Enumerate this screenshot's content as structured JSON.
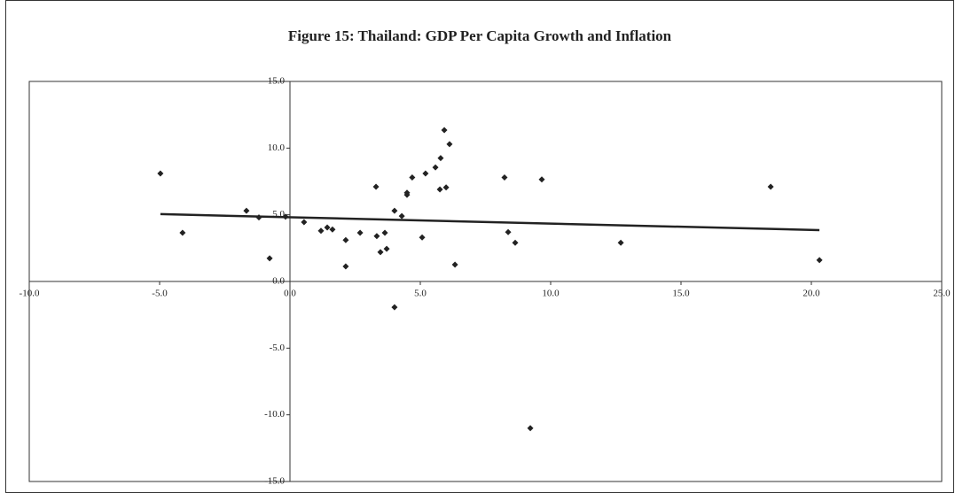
{
  "chart_data": {
    "type": "scatter",
    "title": "Figure 15: Thailand: GDP Per Capita Growth and Inflation",
    "series": [
      {
        "color": "#222222",
        "x": [
          -4.97,
          -4.12,
          -1.67,
          -1.19,
          -0.78,
          -0.17,
          0.54,
          1.19,
          1.43,
          1.63,
          2.14,
          2.14,
          2.69,
          3.3,
          3.33,
          3.47,
          3.64,
          3.71,
          4.01,
          4.01,
          4.29,
          4.49,
          4.49,
          4.69,
          5.07,
          5.2,
          5.58,
          5.75,
          5.78,
          5.92,
          5.99,
          6.12,
          6.33,
          8.23,
          8.37,
          8.64,
          9.66,
          9.22,
          12.69,
          18.44,
          20.31
        ],
        "values": [
          8.1,
          3.65,
          5.3,
          4.8,
          1.73,
          4.85,
          4.45,
          3.8,
          4.05,
          3.9,
          3.1,
          1.13,
          3.65,
          7.1,
          3.4,
          2.2,
          3.65,
          2.45,
          5.3,
          -1.93,
          4.9,
          6.65,
          6.5,
          7.8,
          3.3,
          8.1,
          8.55,
          6.9,
          9.25,
          11.35,
          7.05,
          10.3,
          1.26,
          7.8,
          3.7,
          2.9,
          7.65,
          -11.0,
          2.9,
          7.1,
          1.6
        ]
      }
    ],
    "trendline": {
      "color": "#222222",
      "x": [
        -4.97,
        20.31
      ],
      "values": [
        5.05,
        3.85
      ]
    },
    "xlim": [
      -10,
      25
    ],
    "xticks": [
      {
        "value": -10,
        "label": "-10.0"
      },
      {
        "value": -5,
        "label": "-5.0"
      },
      {
        "value": 0,
        "label": "0.0"
      },
      {
        "value": 5,
        "label": "5.0"
      },
      {
        "value": 10,
        "label": "10.0"
      },
      {
        "value": 15,
        "label": "15.0"
      },
      {
        "value": 20,
        "label": "20.0"
      },
      {
        "value": 25,
        "label": "25.0"
      }
    ],
    "ylim": [
      -15,
      15
    ],
    "yticks": [
      {
        "value": -15,
        "label": "-15.0"
      },
      {
        "value": -10,
        "label": "-10.0"
      },
      {
        "value": -5,
        "label": "-5.0"
      },
      {
        "value": 0,
        "label": "0.0"
      },
      {
        "value": 5,
        "label": "5.0"
      },
      {
        "value": 10,
        "label": "10.0"
      },
      {
        "value": 15,
        "label": "15.0"
      }
    ]
  }
}
